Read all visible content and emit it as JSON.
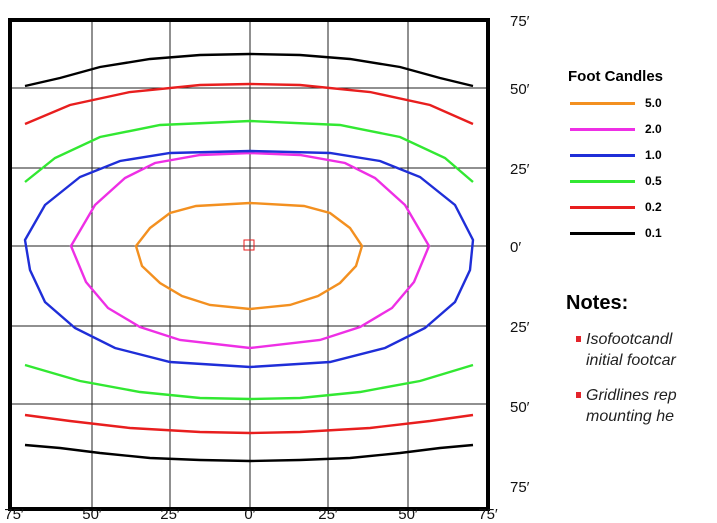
{
  "axis": {
    "y_labels": [
      "75′",
      "50′",
      "25′",
      "0′",
      "25′",
      "50′",
      "75′"
    ],
    "x_labels": [
      "75′",
      "50′",
      "25′",
      "0′",
      "25′",
      "50′",
      "75′"
    ]
  },
  "legend": {
    "title": "Foot Candles",
    "items": [
      {
        "label": "5.0",
        "color": "#f39020"
      },
      {
        "label": "2.0",
        "color": "#ee2fe5"
      },
      {
        "label": "1.0",
        "color": "#1f2ed8"
      },
      {
        "label": "0.5",
        "color": "#32e832"
      },
      {
        "label": "0.2",
        "color": "#e81e1e"
      },
      {
        "label": "0.1",
        "color": "#000000"
      }
    ]
  },
  "notes": {
    "title": "Notes:",
    "items": [
      {
        "line1": "Isofootcandl",
        "line2": "initial footcar"
      },
      {
        "line1": "Gridlines rep",
        "line2": "mounting he"
      }
    ]
  }
}
